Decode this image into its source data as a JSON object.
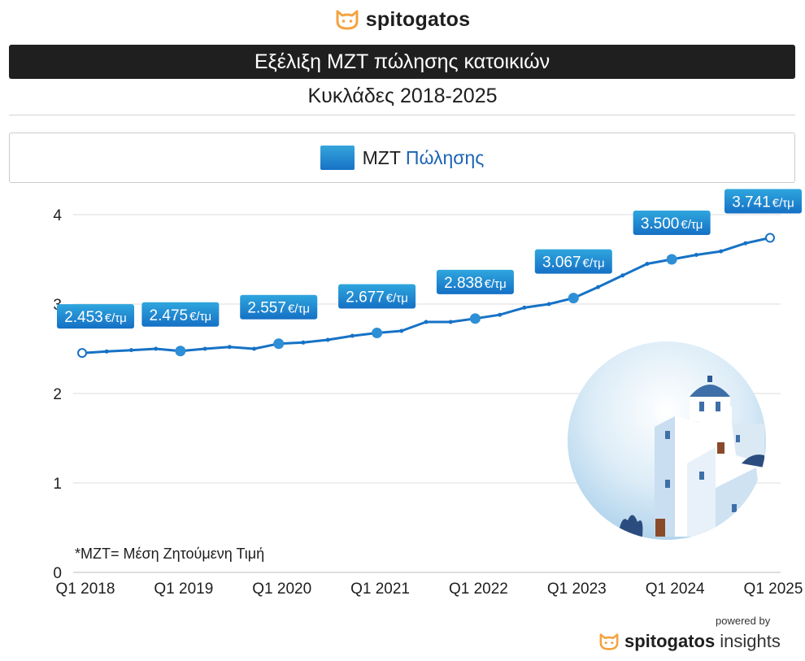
{
  "brand": {
    "name": "spitogatos",
    "logo_icon": "cat-head-icon",
    "accent": "#f4a340"
  },
  "title": "Εξέλιξη ΜΖΤ πώλησης κατοικιών",
  "subtitle": "Κυκλάδες 2018-2025",
  "legend": {
    "part1": "ΜΖΤ",
    "part2": "Πώλησης"
  },
  "footnote": "*ΜΖΤ= Μέση Ζητούμενη Τιμή",
  "footer": {
    "powered_by": "powered by",
    "brand": "spitogatos",
    "suffix": "insights"
  },
  "illustration": "cyclades-whitewashed-houses-illustration",
  "chart_data": {
    "type": "line",
    "series": [
      {
        "name": "ΜΖΤ Πώλησης",
        "color": "#1672c6",
        "values": [
          2.453,
          2.47,
          2.485,
          2.5,
          2.475,
          2.5,
          2.52,
          2.5,
          2.557,
          2.57,
          2.6,
          2.645,
          2.677,
          2.7,
          2.8,
          2.8,
          2.838,
          2.88,
          2.96,
          3.0,
          3.067,
          3.19,
          3.32,
          3.45,
          3.5,
          3.55,
          3.59,
          3.68,
          3.741
        ]
      }
    ],
    "x_start": "Q1 2018",
    "x_tick_labels": [
      "Q1 2018",
      "Q1 2019",
      "Q1 2020",
      "Q1 2021",
      "Q1 2022",
      "Q1 2023",
      "Q1 2024",
      "Q1 2025"
    ],
    "y_ticks": [
      0,
      1,
      2,
      3,
      4
    ],
    "ylim": [
      0,
      4
    ],
    "grid": true,
    "data_labels": [
      {
        "index": 0,
        "value": "2.453",
        "unit": "€/τμ"
      },
      {
        "index": 4,
        "value": "2.475",
        "unit": "€/τμ"
      },
      {
        "index": 8,
        "value": "2.557",
        "unit": "€/τμ"
      },
      {
        "index": 12,
        "value": "2.677",
        "unit": "€/τμ"
      },
      {
        "index": 16,
        "value": "2.838",
        "unit": "€/τμ"
      },
      {
        "index": 20,
        "value": "3.067",
        "unit": "€/τμ"
      },
      {
        "index": 24,
        "value": "3.500",
        "unit": "€/τμ"
      },
      {
        "index": 28,
        "value": "3.741",
        "unit": "€/τμ"
      }
    ]
  }
}
